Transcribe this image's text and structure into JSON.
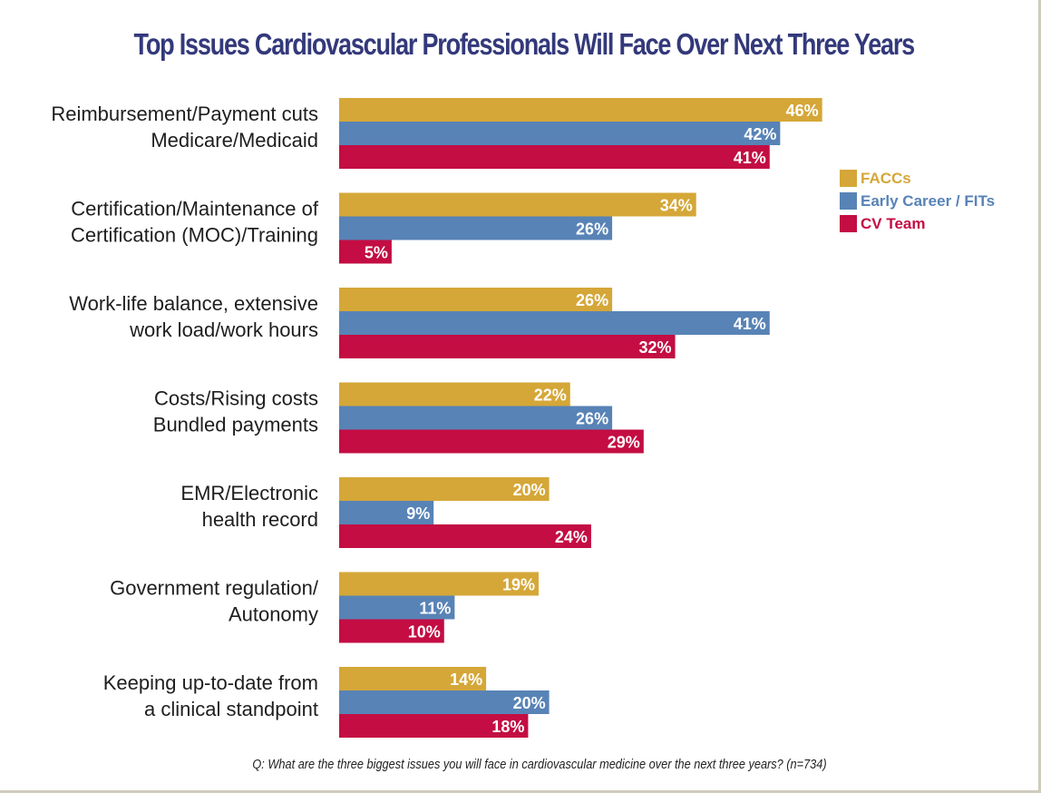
{
  "chart_data": {
    "type": "bar",
    "orientation": "horizontal",
    "title": "Top Issues Cardiovascular Professionals Will Face Over Next Three Years",
    "xlabel": "",
    "ylabel": "",
    "xlim": [
      0,
      50
    ],
    "grid": false,
    "legend_position": "right",
    "value_suffix": "%",
    "categories": [
      [
        "Reimbursement/Payment cuts",
        "Medicare/Medicaid"
      ],
      [
        "Certification/Maintenance of",
        "Certification (MOC)/Training"
      ],
      [
        "Work-life balance, extensive",
        "work load/work hours"
      ],
      [
        "Costs/Rising costs",
        "Bundled payments"
      ],
      [
        "EMR/Electronic",
        "health record"
      ],
      [
        "Government regulation/",
        "Autonomy"
      ],
      [
        "Keeping up-to-date from",
        "a clinical standpoint"
      ]
    ],
    "series": [
      {
        "name": "FACCs",
        "color": "#d5a738",
        "values": [
          46,
          34,
          26,
          22,
          20,
          19,
          14
        ]
      },
      {
        "name": "Early Career / FITs",
        "color": "#5883b6",
        "values": [
          42,
          26,
          41,
          26,
          9,
          11,
          20
        ]
      },
      {
        "name": "CV Team",
        "color": "#c30d43",
        "values": [
          41,
          5,
          32,
          29,
          24,
          10,
          18
        ]
      }
    ],
    "footnote": "Q: What are the three biggest issues you will face in cardiovascular medicine over the next three years? (n=734)"
  },
  "colors": {
    "title": "#33397a",
    "frame": "#cfcbbd"
  }
}
